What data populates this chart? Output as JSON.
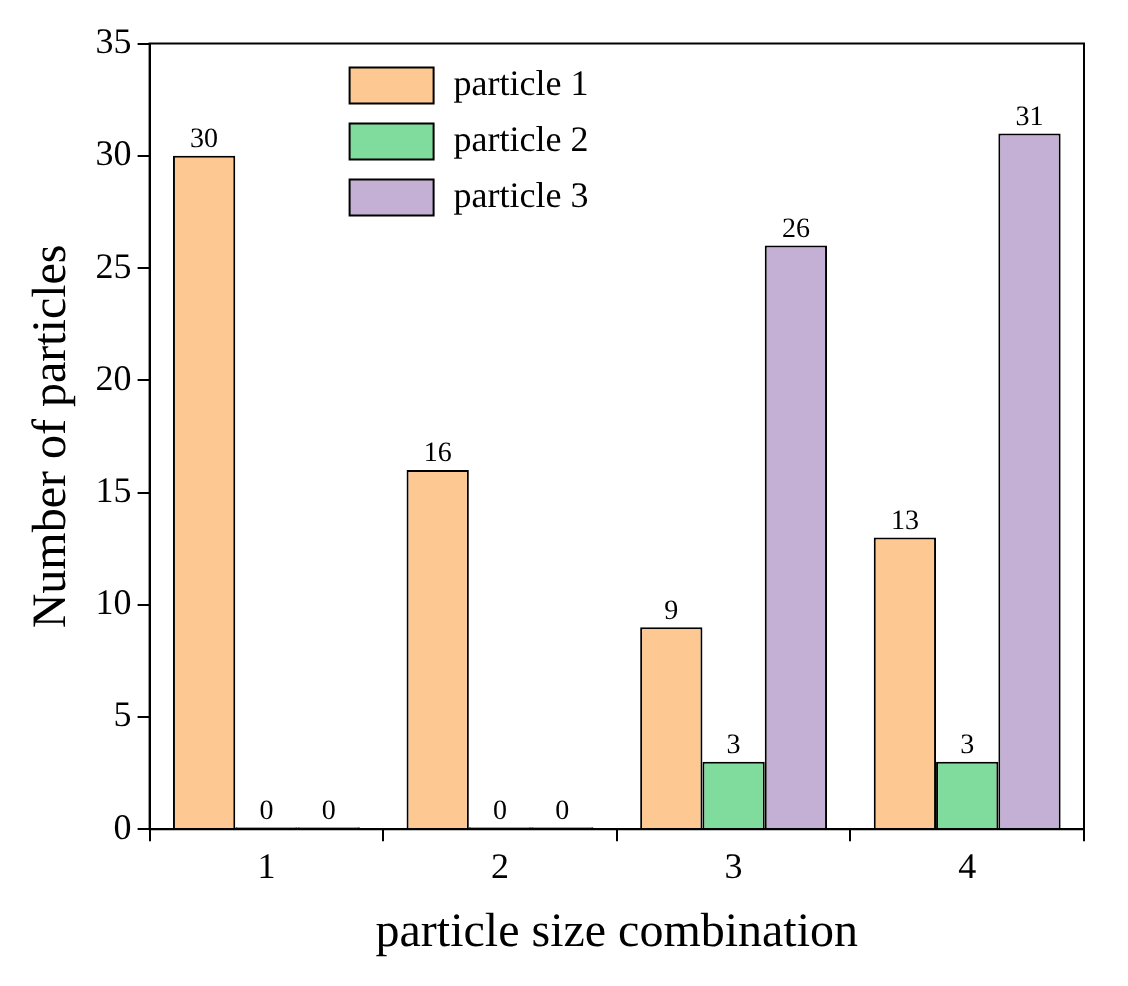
{
  "chart_data": {
    "type": "bar",
    "xlabel": "particle size combination",
    "ylabel": "Number of particles",
    "categories": [
      "1",
      "2",
      "3",
      "4"
    ],
    "series": [
      {
        "name": "particle 1",
        "color": "#fdc891",
        "values": [
          30,
          16,
          9,
          13
        ]
      },
      {
        "name": "particle 2",
        "color": "#7fdc9c",
        "values": [
          0,
          0,
          3,
          3
        ]
      },
      {
        "name": "particle 3",
        "color": "#c5b0d5",
        "values": [
          0,
          0,
          26,
          31
        ]
      }
    ],
    "ylim": [
      0,
      35
    ],
    "yticks": [
      0,
      5,
      10,
      15,
      20,
      25,
      30,
      35
    ],
    "grid": false,
    "legend": "top",
    "data_labels": true
  }
}
